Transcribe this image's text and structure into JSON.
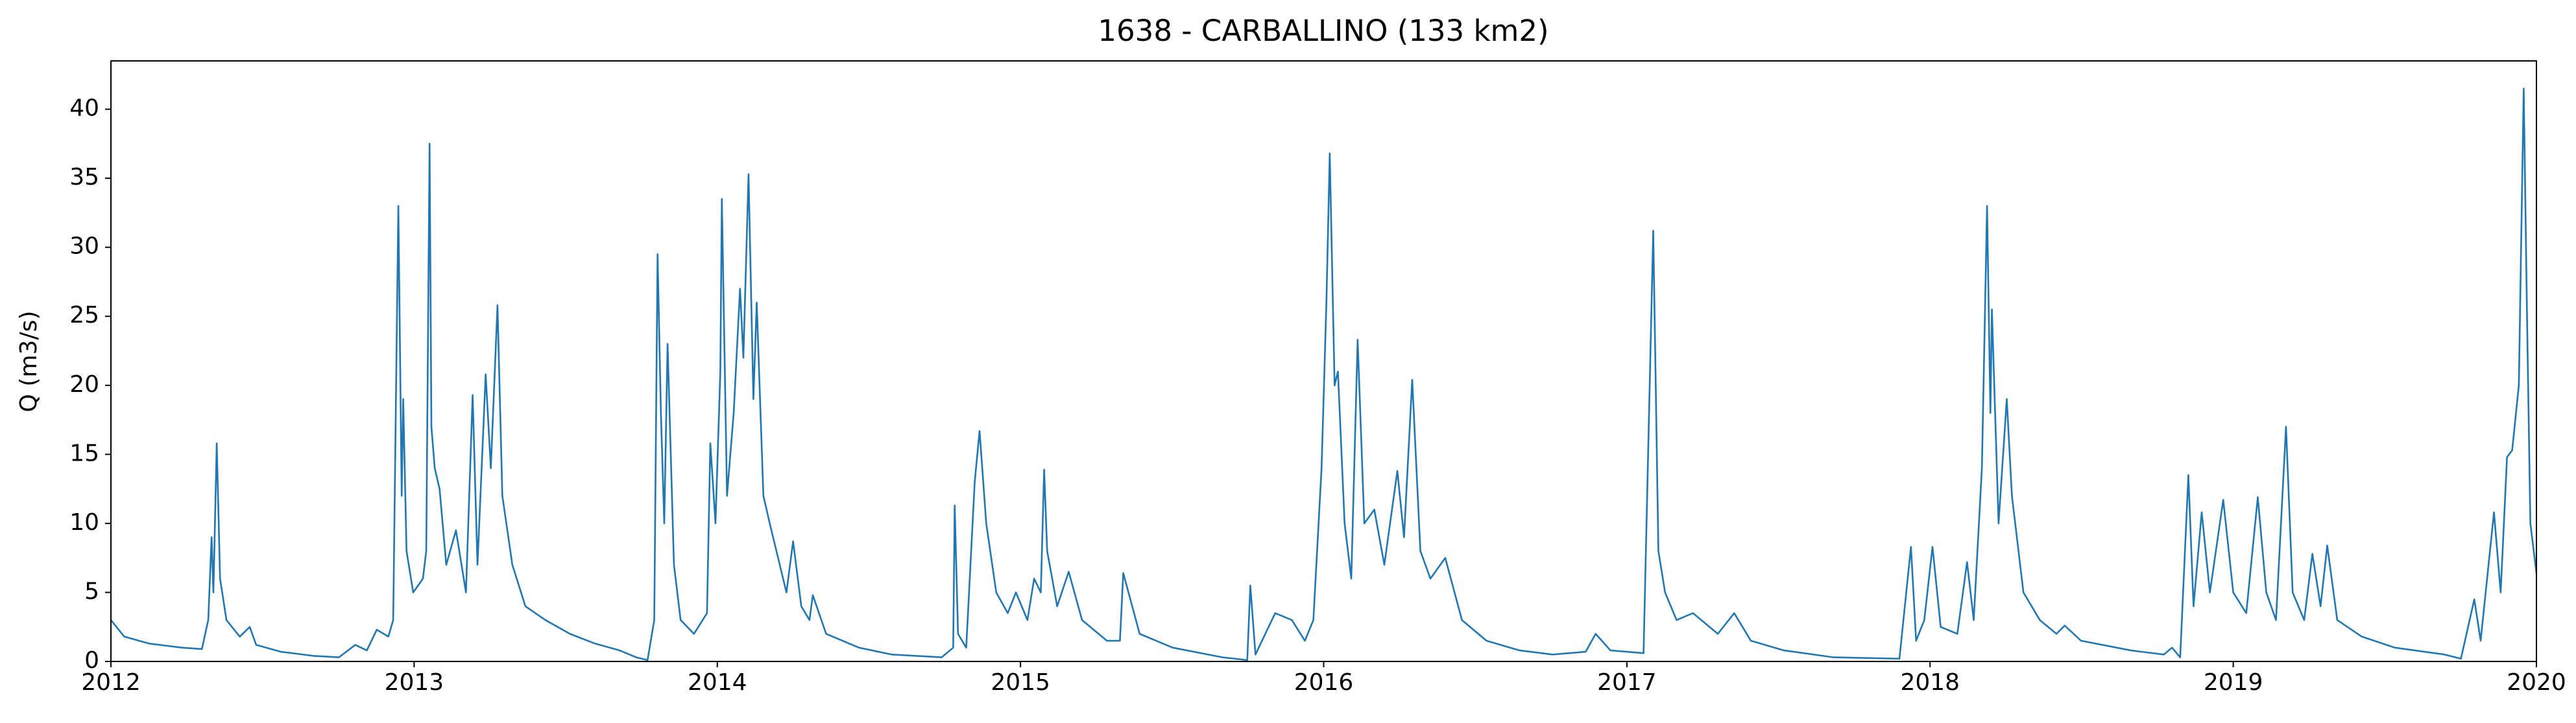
{
  "chart_data": {
    "type": "line",
    "title": "1638 - CARBALLINO (133 km2)",
    "y_label": "Q (m3/s)",
    "x": [
      2012.0,
      2012.044,
      2012.125,
      2012.234,
      2012.3,
      2012.321,
      2012.332,
      2012.338,
      2012.349,
      2012.36,
      2012.381,
      2012.425,
      2012.458,
      2012.479,
      2012.561,
      2012.67,
      2012.752,
      2012.806,
      2012.844,
      2012.877,
      2012.915,
      2012.931,
      2012.948,
      2012.959,
      2012.964,
      2012.975,
      2012.997,
      2013.029,
      2013.04,
      2013.051,
      2013.057,
      2013.068,
      2013.084,
      2013.106,
      2013.138,
      2013.171,
      2013.193,
      2013.209,
      2013.236,
      2013.253,
      2013.275,
      2013.291,
      2013.324,
      2013.367,
      2013.433,
      2013.514,
      2013.596,
      2013.678,
      2013.732,
      2013.77,
      2013.792,
      2013.803,
      2013.814,
      2013.825,
      2013.836,
      2013.857,
      2013.879,
      2013.923,
      2013.966,
      2013.977,
      2013.994,
      2014.01,
      2014.015,
      2014.032,
      2014.054,
      2014.075,
      2014.086,
      2014.103,
      2014.119,
      2014.13,
      2014.152,
      2014.173,
      2014.195,
      2014.228,
      2014.25,
      2014.277,
      2014.304,
      2014.315,
      2014.359,
      2014.467,
      2014.576,
      2014.74,
      2014.778,
      2014.783,
      2014.794,
      2014.821,
      2014.849,
      2014.865,
      2014.887,
      2014.92,
      2014.958,
      2014.985,
      2015.023,
      2015.045,
      2015.067,
      2015.078,
      2015.088,
      2015.121,
      2015.159,
      2015.203,
      2015.285,
      2015.328,
      2015.339,
      2015.393,
      2015.502,
      2015.666,
      2015.748,
      2015.758,
      2015.775,
      2015.84,
      2015.895,
      2015.938,
      2015.966,
      2015.993,
      2016.009,
      2016.02,
      2016.036,
      2016.047,
      2016.069,
      2016.091,
      2016.112,
      2016.134,
      2016.167,
      2016.2,
      2016.243,
      2016.265,
      2016.292,
      2016.319,
      2016.352,
      2016.401,
      2016.456,
      2016.537,
      2016.646,
      2016.755,
      2016.864,
      2016.897,
      2016.946,
      2017.055,
      2017.087,
      2017.104,
      2017.126,
      2017.164,
      2017.218,
      2017.3,
      2017.354,
      2017.409,
      2017.518,
      2017.681,
      2017.899,
      2017.937,
      2017.954,
      2017.981,
      2018.008,
      2018.035,
      2018.09,
      2018.122,
      2018.144,
      2018.171,
      2018.188,
      2018.199,
      2018.204,
      2018.226,
      2018.253,
      2018.27,
      2018.308,
      2018.362,
      2018.417,
      2018.444,
      2018.498,
      2018.662,
      2018.771,
      2018.798,
      2018.825,
      2018.852,
      2018.869,
      2018.896,
      2018.923,
      2018.967,
      2019.0,
      2019.043,
      2019.081,
      2019.109,
      2019.141,
      2019.174,
      2019.196,
      2019.234,
      2019.261,
      2019.288,
      2019.31,
      2019.343,
      2019.424,
      2019.533,
      2019.697,
      2019.751,
      2019.795,
      2019.816,
      2019.86,
      2019.882,
      2019.903,
      2019.92,
      2019.942,
      2019.958,
      2019.969,
      2019.98,
      2020.0
    ],
    "series": [
      {
        "name": "Q",
        "color": "#1f77b4",
        "values": [
          3.0,
          1.8,
          1.3,
          1.0,
          0.9,
          3.0,
          9,
          5,
          15.8,
          6,
          3,
          1.8,
          2.5,
          1.2,
          0.7,
          0.4,
          0.3,
          1.2,
          0.8,
          2.3,
          1.8,
          3,
          33,
          12,
          19,
          8,
          5,
          6,
          8,
          37.5,
          17,
          14,
          12.5,
          7,
          9.5,
          5,
          19.3,
          7,
          20.8,
          14,
          25.8,
          12,
          7,
          4,
          3,
          2,
          1.3,
          0.8,
          0.3,
          0.1,
          3,
          29.5,
          18,
          10,
          23,
          7,
          3,
          2,
          3.5,
          15.8,
          10,
          21,
          33.5,
          12,
          18,
          27,
          22,
          35.3,
          19,
          26,
          12,
          10,
          8,
          5,
          8.7,
          4,
          3,
          4.8,
          2,
          1,
          0.5,
          0.3,
          1,
          11.3,
          2,
          1,
          13,
          16.7,
          10,
          5,
          3.5,
          5,
          3,
          6,
          5,
          13.9,
          8,
          4,
          6.5,
          3,
          1.5,
          1.5,
          6.4,
          2,
          1,
          0.3,
          0.1,
          5.5,
          0.5,
          3.5,
          3,
          1.5,
          3,
          14,
          26,
          36.8,
          20,
          21,
          10,
          6,
          23.3,
          10,
          11,
          7,
          13.8,
          9,
          20.4,
          8,
          6,
          7.5,
          3,
          1.5,
          0.8,
          0.5,
          0.7,
          2,
          0.8,
          0.6,
          31.2,
          8,
          5,
          3,
          3.5,
          2,
          3.5,
          1.5,
          0.8,
          0.3,
          0.2,
          8.3,
          1.5,
          3,
          8.3,
          2.5,
          2,
          7.2,
          3,
          14,
          33,
          18,
          25.5,
          10,
          19,
          12,
          5,
          3,
          2,
          2.6,
          1.5,
          0.8,
          0.5,
          1,
          0.3,
          13.5,
          4,
          10.8,
          5,
          11.7,
          5,
          3.5,
          11.9,
          5,
          3,
          17,
          5,
          3,
          7.8,
          4,
          8.4,
          3,
          1.8,
          1,
          0.5,
          0.2,
          4.5,
          1.5,
          10.8,
          5,
          14.8,
          15.3,
          20,
          41.5,
          25,
          10,
          6.4
        ]
      }
    ],
    "xlim": [
      2012,
      2020
    ],
    "xticks": [
      2012,
      2013,
      2014,
      2015,
      2016,
      2017,
      2018,
      2019,
      2020
    ],
    "ylim": [
      0,
      43.5
    ],
    "yticks": [
      0,
      5,
      10,
      15,
      20,
      25,
      30,
      35,
      40
    ],
    "grid": false
  }
}
